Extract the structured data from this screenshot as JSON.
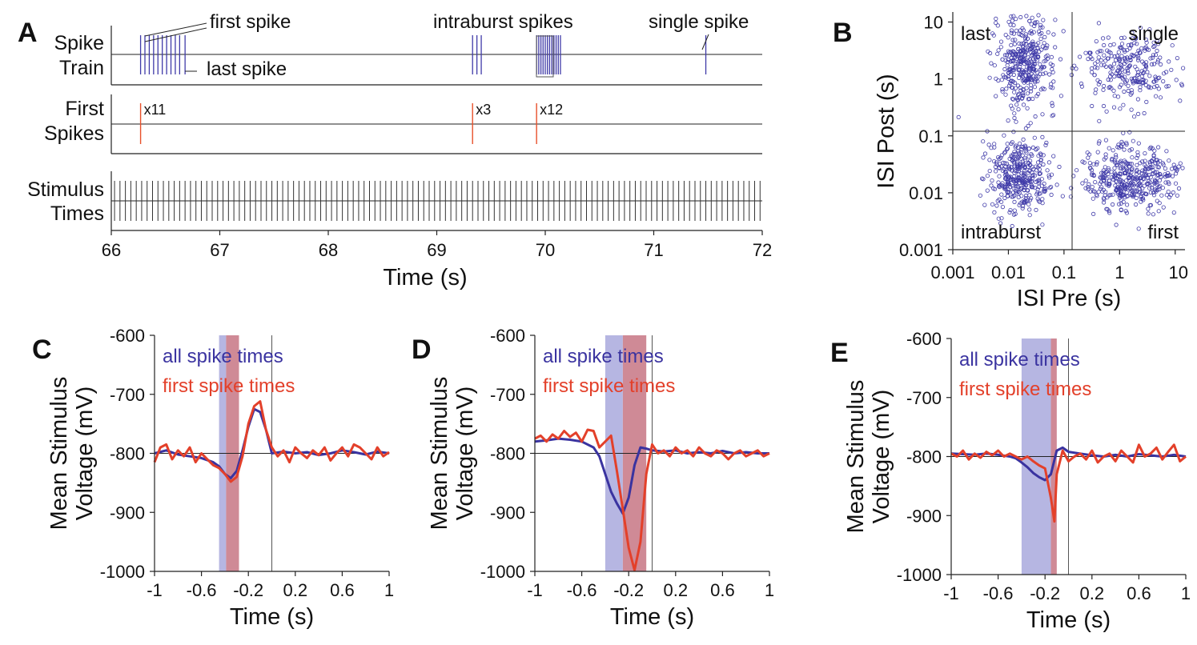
{
  "colors": {
    "spike": "#3f3aa8",
    "first": "#e8502a",
    "all_line": "#3a33a0",
    "first_line": "#e3402a",
    "shade_all": "#b6b6e2",
    "shade_first": "#cf8a96",
    "axis": "#222222"
  },
  "chart_data": [
    {
      "panel": "A",
      "type": "raster",
      "xlabel": "Time (s)",
      "xlim": [
        66,
        72
      ],
      "xticks": [
        "66",
        "67",
        "68",
        "69",
        "70",
        "71",
        "72"
      ],
      "rows": [
        {
          "label_line1": "Spike",
          "label_line2": "Train",
          "spike_times": [
            66.27,
            66.31,
            66.35,
            66.39,
            66.43,
            66.47,
            66.51,
            66.55,
            66.59,
            66.63,
            66.68,
            69.33,
            69.37,
            69.41,
            69.92,
            69.94,
            69.96,
            69.98,
            70.0,
            70.02,
            70.04,
            70.06,
            70.08,
            70.1,
            70.12,
            70.14,
            71.48
          ],
          "annotations": [
            "first spike",
            "last spike",
            "intraburst spikes",
            "single spike"
          ]
        },
        {
          "label_line1": "First",
          "label_line2": "Spikes",
          "events": [
            {
              "t": 66.27,
              "label": "x11"
            },
            {
              "t": 69.33,
              "label": "x3"
            },
            {
              "t": 69.92,
              "label": "x12"
            }
          ]
        },
        {
          "label_line1": "Stimulus",
          "label_line2": "Times",
          "stimulus_interval_s": 0.05
        }
      ]
    },
    {
      "panel": "B",
      "type": "scatter",
      "xlabel": "ISI Pre (s)",
      "ylabel": "ISI Post (s)",
      "scale": "log",
      "xlim": [
        0.001,
        15
      ],
      "ylim": [
        0.001,
        15
      ],
      "xticks": [
        "0.001",
        "0.01",
        "0.1",
        "1",
        "10"
      ],
      "yticks": [
        "10",
        "1",
        "0.1",
        "0.01",
        "0.001"
      ],
      "threshold": 0.1,
      "quadrant_labels": [
        "last",
        "single",
        "intraburst",
        "first"
      ],
      "clusters": [
        {
          "label": "last",
          "center_x": 0.02,
          "center_y": 2.0,
          "spread_x": 0.28,
          "spread_y": 0.4
        },
        {
          "label": "single",
          "center_x": 1.5,
          "center_y": 1.5,
          "spread_x": 0.42,
          "spread_y": 0.35
        },
        {
          "label": "intraburst",
          "center_x": 0.015,
          "center_y": 0.02,
          "spread_x": 0.28,
          "spread_y": 0.32
        },
        {
          "label": "first",
          "center_x": 1.6,
          "center_y": 0.018,
          "spread_x": 0.42,
          "spread_y": 0.28
        }
      ]
    },
    {
      "panel": "C",
      "type": "line",
      "xlabel": "Time (s)",
      "ylabel_line1": "Mean Stimulus",
      "ylabel_line2": "Voltage (mV)",
      "xlim": [
        -1,
        1
      ],
      "ylim": [
        -1000,
        -600
      ],
      "xticks": [
        "-1",
        "-0.6",
        "-0.2",
        "0.2",
        "0.6",
        "1"
      ],
      "yticks": [
        "-600",
        "-700",
        "-800",
        "-900",
        "-1000"
      ],
      "shade_all": [
        -0.45,
        -0.39
      ],
      "shade_first": [
        -0.39,
        -0.28
      ],
      "series": [
        {
          "name": "all spike times",
          "x": [
            -1,
            -0.9,
            -0.8,
            -0.7,
            -0.6,
            -0.5,
            -0.45,
            -0.4,
            -0.35,
            -0.3,
            -0.25,
            -0.2,
            -0.15,
            -0.1,
            -0.05,
            0,
            0.1,
            0.2,
            0.3,
            0.4,
            0.5,
            0.6,
            0.7,
            0.8,
            0.9,
            1
          ],
          "y": [
            -800,
            -795,
            -802,
            -805,
            -808,
            -815,
            -822,
            -835,
            -842,
            -830,
            -795,
            -755,
            -725,
            -730,
            -760,
            -800,
            -797,
            -800,
            -798,
            -803,
            -800,
            -795,
            -798,
            -802,
            -797,
            -800
          ]
        },
        {
          "name": "first spike times",
          "x": [
            -1,
            -0.95,
            -0.9,
            -0.85,
            -0.8,
            -0.75,
            -0.7,
            -0.65,
            -0.6,
            -0.55,
            -0.5,
            -0.45,
            -0.4,
            -0.35,
            -0.3,
            -0.25,
            -0.2,
            -0.15,
            -0.1,
            -0.05,
            0,
            0.05,
            0.1,
            0.15,
            0.2,
            0.25,
            0.3,
            0.35,
            0.4,
            0.45,
            0.5,
            0.55,
            0.6,
            0.65,
            0.7,
            0.75,
            0.8,
            0.85,
            0.9,
            0.95,
            1
          ],
          "y": [
            -815,
            -790,
            -785,
            -810,
            -795,
            -805,
            -790,
            -815,
            -800,
            -810,
            -820,
            -825,
            -835,
            -848,
            -840,
            -805,
            -750,
            -720,
            -712,
            -760,
            -790,
            -805,
            -795,
            -815,
            -790,
            -800,
            -808,
            -795,
            -803,
            -790,
            -812,
            -800,
            -790,
            -805,
            -785,
            -790,
            -800,
            -810,
            -790,
            -805,
            -798
          ]
        }
      ]
    },
    {
      "panel": "D",
      "type": "line",
      "xlabel": "Time (s)",
      "ylabel_line1": "Mean Stimulus",
      "ylabel_line2": "Voltage (mV)",
      "xlim": [
        -1,
        1
      ],
      "ylim": [
        -1000,
        -600
      ],
      "xticks": [
        "-1",
        "-0.6",
        "-0.2",
        "0.2",
        "0.6",
        "1"
      ],
      "yticks": [
        "-600",
        "-700",
        "-800",
        "-900",
        "-1000"
      ],
      "shade_all": [
        -0.4,
        -0.25
      ],
      "shade_first": [
        -0.25,
        -0.05
      ],
      "series": [
        {
          "name": "all spike times",
          "x": [
            -1,
            -0.9,
            -0.8,
            -0.7,
            -0.6,
            -0.5,
            -0.45,
            -0.4,
            -0.35,
            -0.3,
            -0.25,
            -0.2,
            -0.15,
            -0.1,
            -0.05,
            0,
            0.1,
            0.2,
            0.3,
            0.4,
            0.5,
            0.6,
            0.7,
            0.8,
            0.9,
            1
          ],
          "y": [
            -780,
            -778,
            -775,
            -777,
            -780,
            -790,
            -805,
            -835,
            -865,
            -885,
            -902,
            -875,
            -820,
            -790,
            -792,
            -795,
            -797,
            -795,
            -800,
            -798,
            -800,
            -796,
            -800,
            -798,
            -800,
            -800
          ]
        },
        {
          "name": "first spike times",
          "x": [
            -1,
            -0.95,
            -0.9,
            -0.85,
            -0.8,
            -0.75,
            -0.7,
            -0.65,
            -0.6,
            -0.55,
            -0.5,
            -0.45,
            -0.4,
            -0.35,
            -0.3,
            -0.25,
            -0.2,
            -0.15,
            -0.1,
            -0.05,
            0,
            0.05,
            0.1,
            0.15,
            0.2,
            0.25,
            0.3,
            0.35,
            0.4,
            0.45,
            0.5,
            0.55,
            0.6,
            0.65,
            0.7,
            0.75,
            0.8,
            0.85,
            0.9,
            0.95,
            1
          ],
          "y": [
            -775,
            -770,
            -780,
            -768,
            -775,
            -762,
            -772,
            -765,
            -780,
            -760,
            -762,
            -790,
            -780,
            -770,
            -830,
            -895,
            -960,
            -998,
            -950,
            -835,
            -785,
            -800,
            -795,
            -805,
            -790,
            -800,
            -795,
            -805,
            -790,
            -800,
            -805,
            -795,
            -800,
            -810,
            -800,
            -795,
            -805,
            -800,
            -795,
            -805,
            -800
          ]
        }
      ]
    },
    {
      "panel": "E",
      "type": "line",
      "xlabel": "Time (s)",
      "ylabel_line1": "Mean Stimulus",
      "ylabel_line2": "Voltage (mV)",
      "xlim": [
        -1,
        1
      ],
      "ylim": [
        -1000,
        -600
      ],
      "xticks": [
        "-1",
        "-0.6",
        "-0.2",
        "0.2",
        "0.6",
        "1"
      ],
      "yticks": [
        "-600",
        "-700",
        "-800",
        "-900",
        "-1000"
      ],
      "shade_all": [
        -0.4,
        -0.15
      ],
      "shade_first": [
        -0.15,
        -0.1
      ],
      "series": [
        {
          "name": "all spike times",
          "x": [
            -1,
            -0.9,
            -0.8,
            -0.7,
            -0.6,
            -0.5,
            -0.45,
            -0.4,
            -0.35,
            -0.3,
            -0.25,
            -0.2,
            -0.15,
            -0.1,
            -0.05,
            0,
            0.1,
            0.2,
            0.3,
            0.4,
            0.5,
            0.6,
            0.7,
            0.8,
            0.9,
            1
          ],
          "y": [
            -795,
            -796,
            -797,
            -795,
            -797,
            -800,
            -803,
            -810,
            -818,
            -828,
            -835,
            -840,
            -830,
            -790,
            -785,
            -792,
            -795,
            -798,
            -800,
            -797,
            -800,
            -796,
            -798,
            -800,
            -797,
            -800
          ]
        },
        {
          "name": "first spike times",
          "x": [
            -1,
            -0.95,
            -0.9,
            -0.85,
            -0.8,
            -0.75,
            -0.7,
            -0.65,
            -0.6,
            -0.55,
            -0.5,
            -0.45,
            -0.4,
            -0.35,
            -0.3,
            -0.25,
            -0.2,
            -0.15,
            -0.12,
            -0.1,
            -0.05,
            0,
            0.05,
            0.1,
            0.15,
            0.2,
            0.25,
            0.3,
            0.35,
            0.4,
            0.45,
            0.5,
            0.55,
            0.6,
            0.65,
            0.7,
            0.75,
            0.8,
            0.85,
            0.9,
            0.95,
            1
          ],
          "y": [
            -795,
            -800,
            -790,
            -805,
            -795,
            -802,
            -792,
            -798,
            -790,
            -800,
            -795,
            -800,
            -805,
            -800,
            -808,
            -815,
            -820,
            -870,
            -910,
            -830,
            -790,
            -808,
            -800,
            -795,
            -805,
            -790,
            -810,
            -800,
            -795,
            -808,
            -790,
            -800,
            -810,
            -780,
            -800,
            -795,
            -785,
            -805,
            -792,
            -780,
            -808,
            -800
          ]
        }
      ]
    }
  ]
}
